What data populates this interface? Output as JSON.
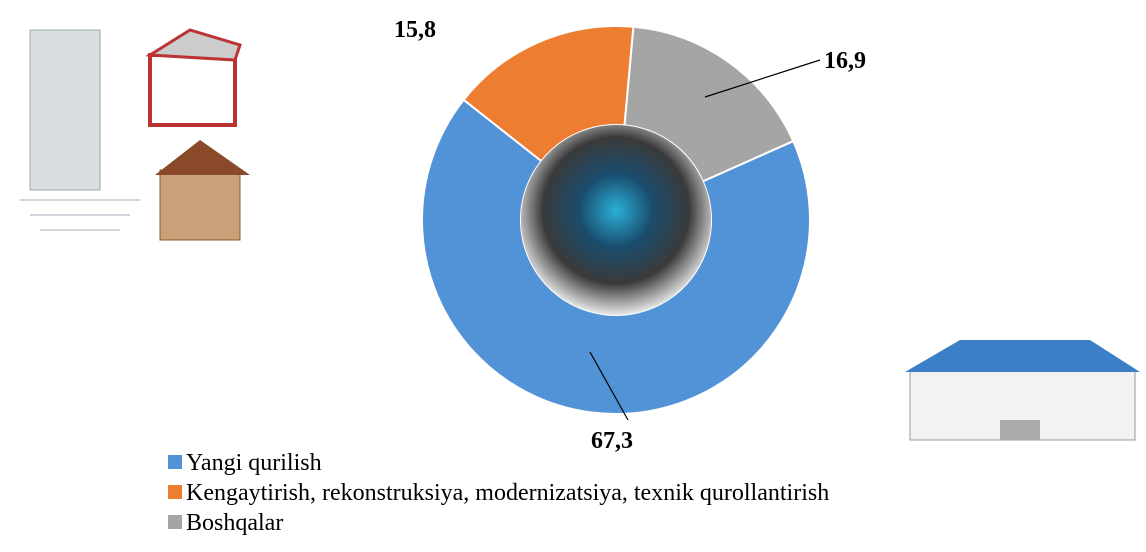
{
  "chart_data": {
    "type": "donut",
    "categories": [
      "Yangi qurilish",
      "Kengaytirish, rekonstruksiya, modernizatsiya, texnik qurollantirish",
      "Boshqalar"
    ],
    "values": [
      67.3,
      15.8,
      16.9
    ],
    "value_labels": [
      "67,3",
      "15,8",
      "16,9"
    ],
    "colors": [
      "#5293d8",
      "#ed7d31",
      "#a5a5a5"
    ],
    "legend": "bottom"
  }
}
